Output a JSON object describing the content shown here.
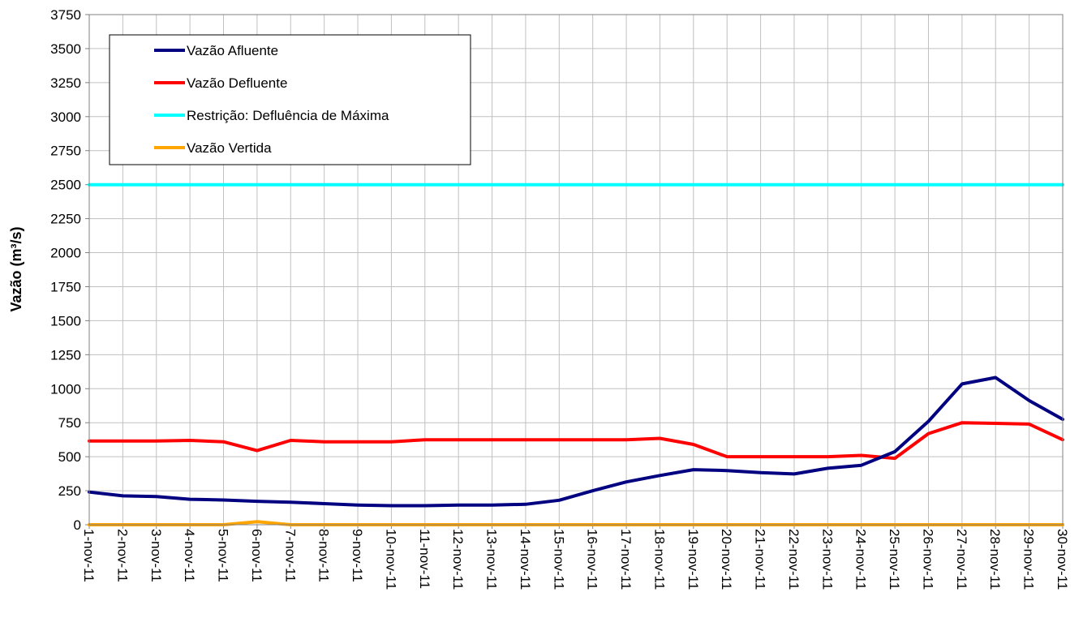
{
  "chart_data": {
    "type": "line",
    "title": "",
    "xlabel": "",
    "ylabel": "Vazão (m³/s)",
    "ylim": [
      0,
      3750
    ],
    "ytick_step": 250,
    "grid": true,
    "legend_position": "top-left",
    "categories": [
      "1-nov-11",
      "2-nov-11",
      "3-nov-11",
      "4-nov-11",
      "5-nov-11",
      "6-nov-11",
      "7-nov-11",
      "8-nov-11",
      "9-nov-11",
      "10-nov-11",
      "11-nov-11",
      "12-nov-11",
      "13-nov-11",
      "14-nov-11",
      "15-nov-11",
      "16-nov-11",
      "17-nov-11",
      "18-nov-11",
      "19-nov-11",
      "20-nov-11",
      "21-nov-11",
      "22-nov-11",
      "23-nov-11",
      "24-nov-11",
      "25-nov-11",
      "26-nov-11",
      "27-nov-11",
      "28-nov-11",
      "29-nov-11",
      "30-nov-11"
    ],
    "series": [
      {
        "name": "Vazão Afluente",
        "color": "#000080",
        "values": [
          240,
          212,
          207,
          187,
          182,
          172,
          166,
          155,
          145,
          140,
          140,
          145,
          145,
          150,
          180,
          250,
          315,
          362,
          405,
          398,
          383,
          373,
          415,
          437,
          537,
          760,
          1035,
          1082,
          913,
          775
        ]
      },
      {
        "name": "Vazão Defluente",
        "color": "#ff0000",
        "values": [
          615,
          615,
          615,
          620,
          610,
          545,
          620,
          610,
          610,
          610,
          625,
          625,
          625,
          625,
          625,
          625,
          625,
          635,
          590,
          500,
          500,
          500,
          500,
          510,
          488,
          670,
          750,
          745,
          740,
          625
        ]
      },
      {
        "name": "Restrição: Defluência de Máxima",
        "color": "#00ffff",
        "values": [
          2500,
          2500,
          2500,
          2500,
          2500,
          2500,
          2500,
          2500,
          2500,
          2500,
          2500,
          2500,
          2500,
          2500,
          2500,
          2500,
          2500,
          2500,
          2500,
          2500,
          2500,
          2500,
          2500,
          2500,
          2500,
          2500,
          2500,
          2500,
          2500,
          2500
        ]
      },
      {
        "name": "Vazão Vertida",
        "color": "#ffa500",
        "values": [
          0,
          0,
          0,
          0,
          0,
          22,
          0,
          0,
          0,
          0,
          0,
          0,
          0,
          0,
          0,
          0,
          0,
          0,
          0,
          0,
          0,
          0,
          0,
          0,
          0,
          0,
          0,
          0,
          0,
          0
        ]
      }
    ]
  }
}
